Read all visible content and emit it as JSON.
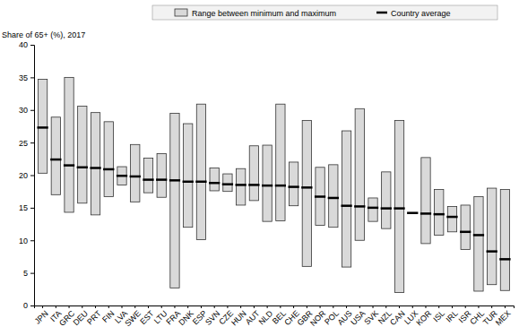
{
  "chart_data": {
    "type": "range",
    "y_label": "Share of 65+ (%), 2017",
    "categories": [
      "JPN",
      "ITA",
      "GRC",
      "DEU",
      "PRT",
      "FIN",
      "LVA",
      "SWE",
      "EST",
      "LTU",
      "FRA",
      "DNK",
      "ESP",
      "SVN",
      "CZE",
      "HUN",
      "AUT",
      "NLD",
      "BEL",
      "CHE",
      "GBR",
      "NOR",
      "POL",
      "AUS",
      "USA",
      "SVK",
      "NZL",
      "CAN",
      "LUX",
      "KOR",
      "ISL",
      "IRL",
      "ISR",
      "CHL",
      "TUR",
      "MEX"
    ],
    "series": [
      {
        "name": "Range between minimum and maximum",
        "color": "#d9d9d9",
        "min": [
          20.3,
          17.0,
          14.3,
          15.7,
          13.9,
          16.7,
          18.5,
          15.9,
          17.3,
          16.6,
          2.7,
          12.0,
          10.1,
          17.6,
          17.5,
          15.4,
          16.1,
          12.9,
          13.0,
          15.3,
          6.0,
          12.3,
          12.0,
          5.9,
          10.0,
          12.9,
          11.8,
          2.0,
          null,
          9.5,
          10.8,
          11.3,
          8.6,
          2.2,
          3.2,
          2.3
        ],
        "max": [
          34.7,
          28.9,
          35.0,
          30.6,
          29.6,
          28.2,
          21.3,
          24.7,
          22.6,
          23.3,
          29.5,
          27.9,
          30.9,
          21.1,
          20.2,
          21.0,
          24.5,
          24.6,
          30.9,
          22.0,
          28.4,
          21.2,
          21.6,
          26.8,
          30.2,
          16.5,
          20.5,
          28.4,
          null,
          22.7,
          17.8,
          15.2,
          15.4,
          16.7,
          18.0,
          17.8
        ]
      },
      {
        "name": "Country average",
        "color": "#000000",
        "values": [
          27.3,
          22.4,
          21.5,
          21.2,
          21.1,
          20.9,
          19.9,
          19.8,
          19.3,
          19.3,
          19.2,
          19.0,
          19.0,
          18.8,
          18.6,
          18.5,
          18.5,
          18.4,
          18.4,
          18.2,
          18.1,
          16.7,
          16.5,
          15.3,
          15.2,
          15.0,
          14.9,
          14.9,
          14.2,
          14.1,
          14.0,
          13.6,
          11.3,
          10.8,
          8.3,
          7.1
        ]
      }
    ],
    "ylim": [
      0,
      40
    ],
    "yticks": [
      0,
      5,
      10,
      15,
      20,
      25,
      30,
      35,
      40
    ],
    "grid": false,
    "legend": "top"
  }
}
